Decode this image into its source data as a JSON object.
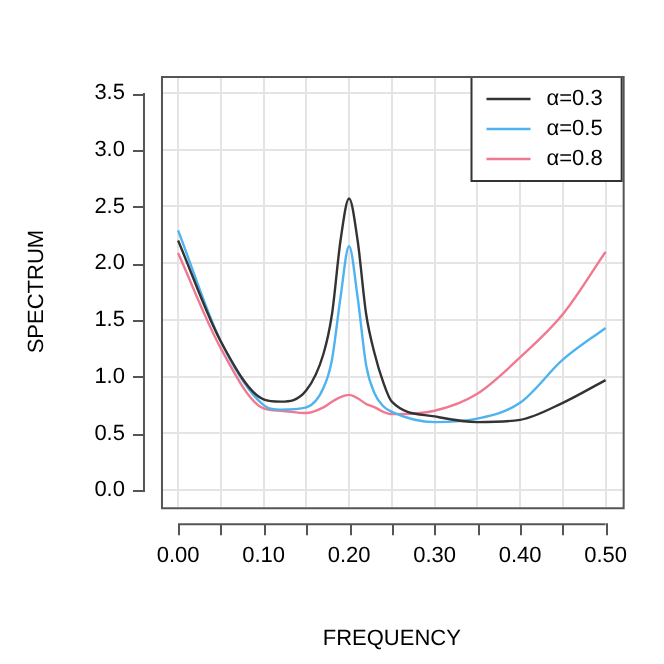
{
  "chart_data": {
    "type": "line",
    "xlabel": "FREQUENCY",
    "ylabel": "SPECTRUM",
    "x": [
      0,
      0.05,
      0.1,
      0.12,
      0.15,
      0.17,
      0.18,
      0.19,
      0.2,
      0.21,
      0.22,
      0.23,
      0.24,
      0.25,
      0.3,
      0.35,
      0.4,
      0.45,
      0.5
    ],
    "series": [
      {
        "name": "α=0.3",
        "color": "#333333",
        "values": [
          2.2,
          1.31,
          0.8,
          0.78,
          0.88,
          1.2,
          1.55,
          2.2,
          2.57,
          2.2,
          1.55,
          1.2,
          0.95,
          0.78,
          0.65,
          0.6,
          0.62,
          0.77,
          0.97
        ]
      },
      {
        "name": "α=0.5",
        "color": "#4fb3f0",
        "values": [
          2.29,
          1.31,
          0.75,
          0.71,
          0.73,
          0.9,
          1.15,
          1.7,
          2.15,
          1.7,
          1.1,
          0.85,
          0.74,
          0.69,
          0.6,
          0.63,
          0.77,
          1.15,
          1.43
        ]
      },
      {
        "name": "α=0.8",
        "color": "#f07890",
        "values": [
          2.09,
          1.25,
          0.72,
          0.7,
          0.68,
          0.73,
          0.78,
          0.82,
          0.84,
          0.81,
          0.76,
          0.73,
          0.69,
          0.67,
          0.7,
          0.85,
          1.17,
          1.55,
          2.1
        ]
      }
    ],
    "xlim": [
      -0.02,
      0.52
    ],
    "ylim": [
      -0.15,
      3.65
    ],
    "xticks": [
      {
        "value": 0,
        "label": "0.00"
      },
      {
        "value": 0.05,
        "label": null
      },
      {
        "value": 0.1,
        "label": "0.10"
      },
      {
        "value": 0.15,
        "label": null
      },
      {
        "value": 0.2,
        "label": "0.20"
      },
      {
        "value": 0.25,
        "label": null
      },
      {
        "value": 0.3,
        "label": "0.30"
      },
      {
        "value": 0.35,
        "label": null
      },
      {
        "value": 0.4,
        "label": "0.40"
      },
      {
        "value": 0.45,
        "label": null
      },
      {
        "value": 0.5,
        "label": "0.50"
      }
    ],
    "yticks": [
      {
        "value": 0,
        "label": "0.0"
      },
      {
        "value": 0.5,
        "label": "0.5"
      },
      {
        "value": 1,
        "label": "1.0"
      },
      {
        "value": 1.5,
        "label": "1.5"
      },
      {
        "value": 2,
        "label": "2.0"
      },
      {
        "value": 2.5,
        "label": "2.5"
      },
      {
        "value": 3,
        "label": "3.0"
      },
      {
        "value": 3.5,
        "label": "3.5"
      }
    ],
    "grid": true,
    "legend": "top right",
    "marker": "none",
    "line_style": "solid"
  }
}
